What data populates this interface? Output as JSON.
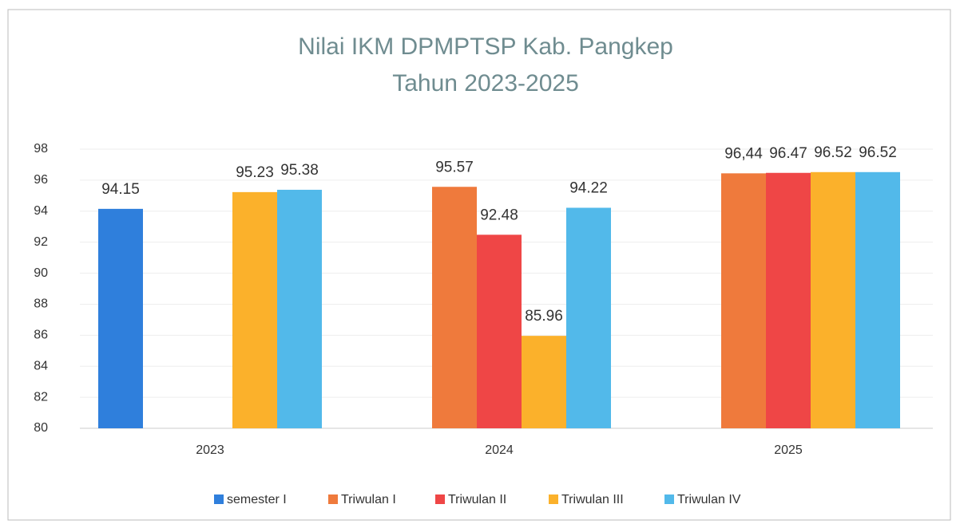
{
  "chart_data": {
    "type": "bar",
    "title": "Nilai IKM DPMPTSP Kab. Pangkep",
    "subtitle": "Tahun 2023-2025",
    "categories": [
      "2023",
      "2024",
      "2025"
    ],
    "series": [
      {
        "name": "semester I",
        "color": "#2f7fdc",
        "values": [
          94.15,
          null,
          null
        ]
      },
      {
        "name": "Triwulan I",
        "color": "#ef7a3c",
        "values": [
          null,
          95.57,
          96.44
        ],
        "value_labels": [
          null,
          "95.57",
          "96,44"
        ]
      },
      {
        "name": "Triwulan II",
        "color": "#ef4646",
        "values": [
          null,
          92.48,
          96.47
        ]
      },
      {
        "name": "Triwulan III",
        "color": "#fbb12b",
        "values": [
          95.23,
          85.96,
          96.52
        ]
      },
      {
        "name": "Triwulan IV",
        "color": "#52b9ea",
        "values": [
          95.38,
          94.22,
          96.52
        ]
      }
    ],
    "ylim": [
      80,
      98
    ],
    "yticks": [
      80,
      82,
      84,
      86,
      88,
      90,
      92,
      94,
      96,
      98
    ],
    "grid": true,
    "legend": "bottom"
  }
}
